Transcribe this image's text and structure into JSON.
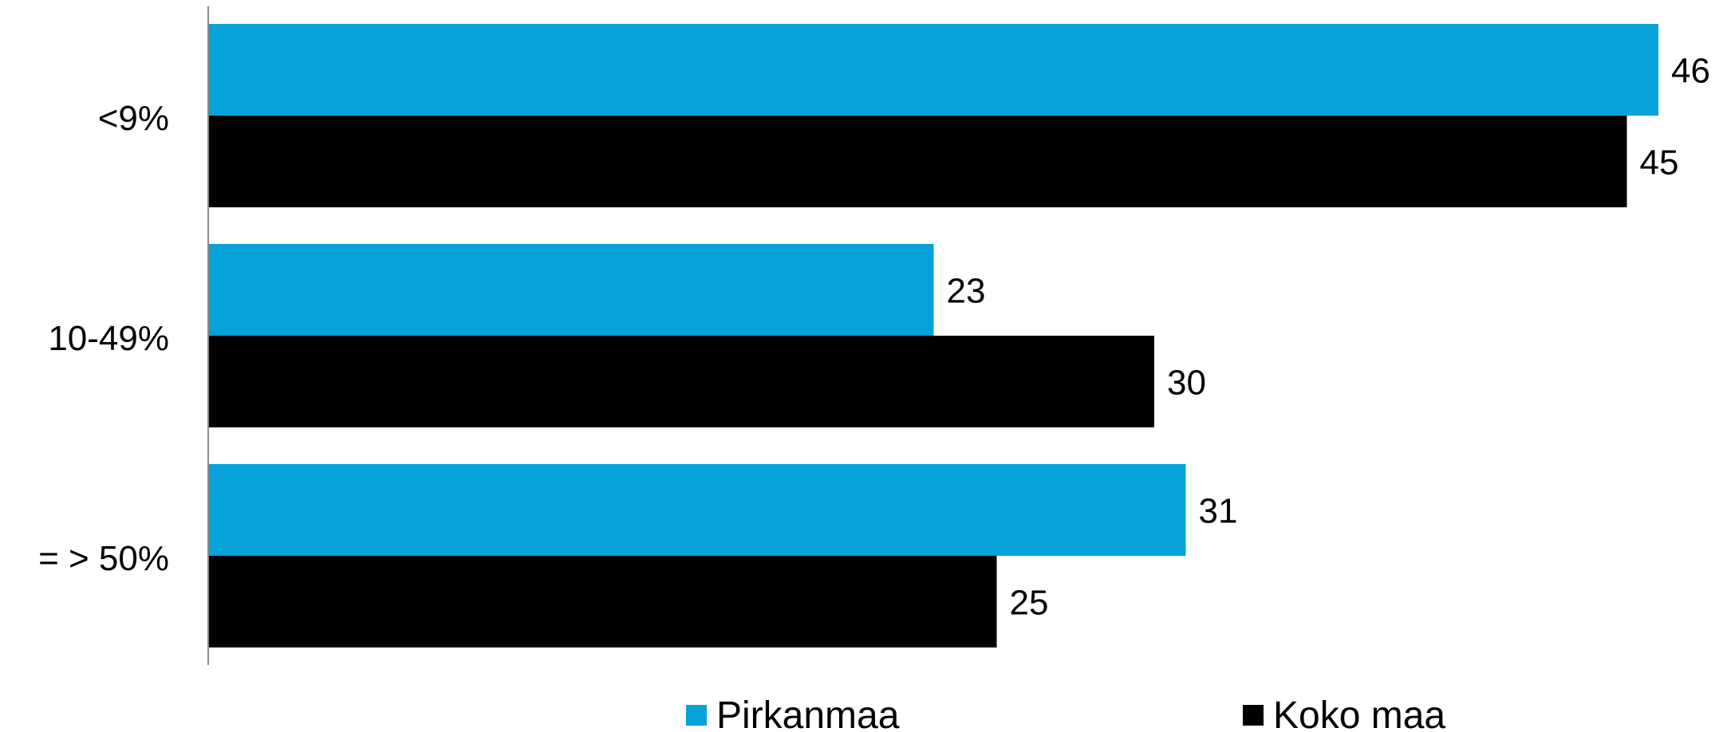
{
  "chart_data": {
    "type": "bar",
    "orientation": "horizontal",
    "categories": [
      "<9%",
      "10-49%",
      "= > 50%"
    ],
    "series": [
      {
        "name": "Pirkanmaa",
        "color": "#05A3D9",
        "values": [
          46,
          23,
          31
        ]
      },
      {
        "name": "Koko maa",
        "color": "#000000",
        "values": [
          45,
          30,
          25
        ]
      }
    ],
    "xlim": [
      0,
      50
    ],
    "grid": false,
    "legend_position": "bottom",
    "data_labels": true
  }
}
